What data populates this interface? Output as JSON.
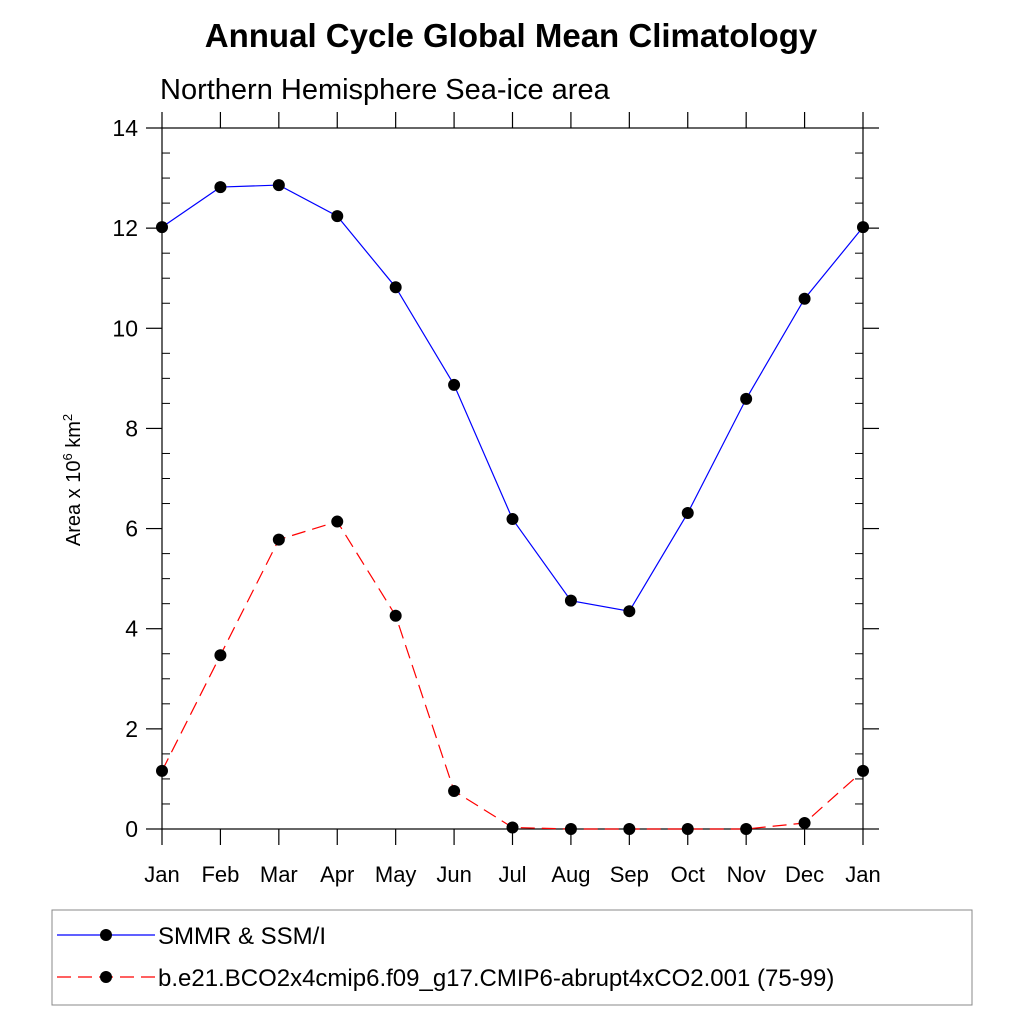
{
  "chart_data": {
    "type": "line",
    "title": "Annual Cycle Global Mean Climatology",
    "subtitle": "Northern Hemisphere Sea-ice area",
    "ylabel": "Area x 10",
    "ylabel_exp": "6",
    "ylabel_unit": " km",
    "ylabel_unit_exp": "2",
    "xlabel": "",
    "ylim": [
      0,
      14
    ],
    "yticks": [
      0,
      2,
      4,
      6,
      8,
      10,
      12,
      14
    ],
    "categories": [
      "Jan",
      "Feb",
      "Mar",
      "Apr",
      "May",
      "Jun",
      "Jul",
      "Aug",
      "Sep",
      "Oct",
      "Nov",
      "Dec",
      "Jan"
    ],
    "series": [
      {
        "name": "SMMR & SSM/I",
        "color": "#0000ff",
        "dash": "solid",
        "values": [
          12.02,
          12.82,
          12.86,
          12.24,
          10.82,
          8.87,
          6.19,
          4.56,
          4.35,
          6.31,
          8.59,
          10.59,
          12.02
        ]
      },
      {
        "name": "b.e21.BCO2x4cmip6.f09_g17.CMIP6-abrupt4xCO2.001 (75-99)",
        "color": "#ff0000",
        "dash": "dashed",
        "values": [
          1.16,
          3.47,
          5.78,
          6.14,
          4.26,
          0.76,
          0.03,
          0.0,
          0.0,
          0.0,
          0.0,
          0.12,
          1.16
        ]
      }
    ],
    "grid": false,
    "legend_position": "bottom",
    "marker": "filled-circle"
  }
}
